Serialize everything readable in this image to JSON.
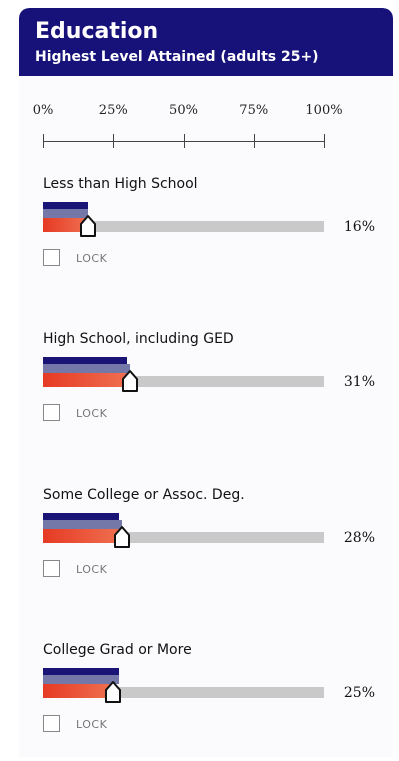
{
  "header": {
    "title": "Education",
    "subtitle": "Highest Level Attained (adults 25+)"
  },
  "scale": {
    "ticks": [
      {
        "label": "0%",
        "value": 0
      },
      {
        "label": "25%",
        "value": 25
      },
      {
        "label": "50%",
        "value": 50
      },
      {
        "label": "75%",
        "value": 75
      },
      {
        "label": "100%",
        "value": 100
      }
    ]
  },
  "rows": [
    {
      "label": "Less than High School",
      "pct_text": "16%",
      "value": 16,
      "ref_top": 16,
      "ref_mid": 16,
      "lock_label": "LOCK",
      "locked": false
    },
    {
      "label": "High School, including GED",
      "pct_text": "31%",
      "value": 31,
      "ref_top": 30,
      "ref_mid": 31,
      "lock_label": "LOCK",
      "locked": false
    },
    {
      "label": "Some College or Assoc. Deg.",
      "pct_text": "28%",
      "value": 28,
      "ref_top": 27,
      "ref_mid": 28,
      "lock_label": "LOCK",
      "locked": false
    },
    {
      "label": "College Grad or More",
      "pct_text": "25%",
      "value": 25,
      "ref_top": 27,
      "ref_mid": 27,
      "lock_label": "LOCK",
      "locked": false
    }
  ],
  "colors": {
    "header_bg": "#17127a",
    "bar_top": "#1a1476",
    "bar_mid": "#7478a8",
    "bar_value": "#e63a24",
    "track": "#c9c9c9"
  }
}
